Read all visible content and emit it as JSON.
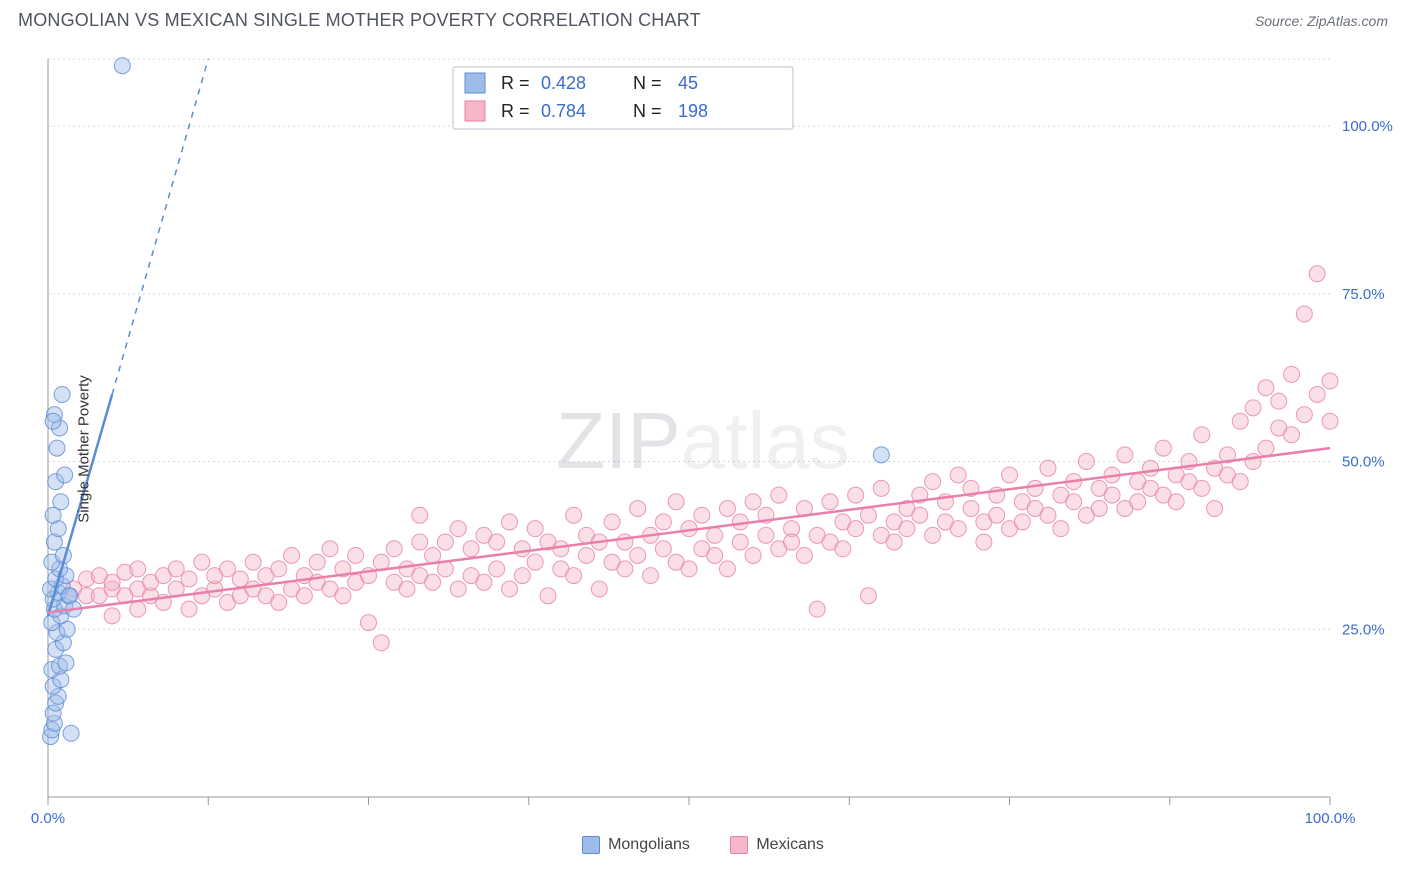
{
  "header": {
    "title": "MONGOLIAN VS MEXICAN SINGLE MOTHER POVERTY CORRELATION CHART",
    "source_label": "Source: ZipAtlas.com"
  },
  "watermark": {
    "zip": "ZIP",
    "atlas": "atlas"
  },
  "chart": {
    "type": "scatter",
    "y_axis_title": "Single Mother Poverty",
    "xlim": [
      0,
      100
    ],
    "ylim": [
      0,
      110
    ],
    "x_ticks": [
      0,
      12.5,
      25,
      37.5,
      50,
      62.5,
      75,
      87.5,
      100
    ],
    "x_tick_labels_visible": {
      "0": "0.0%",
      "100": "100.0%"
    },
    "y_grid": [
      25,
      50,
      75,
      100,
      110
    ],
    "y_grid_labels": {
      "25": "25.0%",
      "50": "50.0%",
      "75": "75.0%",
      "100": "100.0%"
    },
    "background_color": "#ffffff",
    "grid_color": "#d5d9de",
    "axis_color": "#999999",
    "label_color": "#3a6bcf",
    "marker_radius": 8,
    "marker_opacity": 0.45,
    "series": [
      {
        "name": "Mongolians",
        "color_fill": "#9fbce8",
        "color_stroke": "#5a8bd6",
        "stats": {
          "R": "0.428",
          "N": "45"
        },
        "trend": {
          "x1": 0,
          "y1": 27,
          "x2_solid": 5,
          "y2_solid": 60,
          "x2_dash": 12.5,
          "y2_dash": 110
        },
        "points": [
          [
            0.2,
            9
          ],
          [
            0.3,
            10
          ],
          [
            0.5,
            11
          ],
          [
            0.4,
            12.5
          ],
          [
            0.6,
            14
          ],
          [
            0.8,
            15
          ],
          [
            0.4,
            16.5
          ],
          [
            1.0,
            17.5
          ],
          [
            0.3,
            19
          ],
          [
            0.9,
            19.5
          ],
          [
            1.4,
            20
          ],
          [
            1.8,
            9.5
          ],
          [
            0.6,
            22
          ],
          [
            1.2,
            23
          ],
          [
            0.7,
            24.5
          ],
          [
            1.5,
            25
          ],
          [
            0.3,
            26
          ],
          [
            1.0,
            27
          ],
          [
            0.5,
            28
          ],
          [
            1.3,
            28.5
          ],
          [
            0.4,
            29.5
          ],
          [
            1.6,
            30
          ],
          [
            0.8,
            30.5
          ],
          [
            0.2,
            31
          ],
          [
            1.1,
            31.5
          ],
          [
            0.6,
            32.5
          ],
          [
            1.4,
            33
          ],
          [
            0.9,
            34
          ],
          [
            0.3,
            35
          ],
          [
            1.2,
            36
          ],
          [
            0.5,
            38
          ],
          [
            0.8,
            40
          ],
          [
            0.4,
            42
          ],
          [
            1.0,
            44
          ],
          [
            0.6,
            47
          ],
          [
            1.3,
            48
          ],
          [
            0.7,
            52
          ],
          [
            0.9,
            55
          ],
          [
            0.5,
            57
          ],
          [
            1.1,
            60
          ],
          [
            0.4,
            56
          ],
          [
            5.8,
            109
          ],
          [
            65,
            51
          ],
          [
            1.7,
            30
          ],
          [
            2.0,
            28
          ]
        ]
      },
      {
        "name": "Mexicans",
        "color_fill": "#f4b8c8",
        "color_stroke": "#e97faa",
        "stats": {
          "R": "0.784",
          "N": "198"
        },
        "trend": {
          "x1": 0,
          "y1": 27.5,
          "x2_solid": 100,
          "y2_solid": 52,
          "x2_dash": 100,
          "y2_dash": 52
        },
        "points": [
          [
            2,
            31
          ],
          [
            3,
            30
          ],
          [
            3,
            32.5
          ],
          [
            4,
            30
          ],
          [
            4,
            33
          ],
          [
            5,
            27
          ],
          [
            5,
            31
          ],
          [
            5,
            32
          ],
          [
            6,
            30
          ],
          [
            6,
            33.5
          ],
          [
            7,
            28
          ],
          [
            7,
            31
          ],
          [
            7,
            34
          ],
          [
            8,
            30
          ],
          [
            8,
            32
          ],
          [
            9,
            29
          ],
          [
            9,
            33
          ],
          [
            10,
            31
          ],
          [
            10,
            34
          ],
          [
            11,
            28
          ],
          [
            11,
            32.5
          ],
          [
            12,
            30
          ],
          [
            12,
            35
          ],
          [
            13,
            31
          ],
          [
            13,
            33
          ],
          [
            14,
            29
          ],
          [
            14,
            34
          ],
          [
            15,
            30
          ],
          [
            15,
            32.5
          ],
          [
            16,
            31
          ],
          [
            16,
            35
          ],
          [
            17,
            30
          ],
          [
            17,
            33
          ],
          [
            18,
            29
          ],
          [
            18,
            34
          ],
          [
            19,
            31
          ],
          [
            19,
            36
          ],
          [
            20,
            30
          ],
          [
            20,
            33
          ],
          [
            21,
            32
          ],
          [
            21,
            35
          ],
          [
            22,
            31
          ],
          [
            22,
            37
          ],
          [
            23,
            30
          ],
          [
            23,
            34
          ],
          [
            24,
            32
          ],
          [
            24,
            36
          ],
          [
            25,
            26
          ],
          [
            25,
            33
          ],
          [
            26,
            23
          ],
          [
            26,
            35
          ],
          [
            27,
            32
          ],
          [
            27,
            37
          ],
          [
            28,
            31
          ],
          [
            28,
            34
          ],
          [
            29,
            33
          ],
          [
            29,
            38
          ],
          [
            29,
            42
          ],
          [
            30,
            32
          ],
          [
            30,
            36
          ],
          [
            31,
            34
          ],
          [
            31,
            38
          ],
          [
            32,
            31
          ],
          [
            32,
            40
          ],
          [
            33,
            33
          ],
          [
            33,
            37
          ],
          [
            34,
            32
          ],
          [
            34,
            39
          ],
          [
            35,
            34
          ],
          [
            35,
            38
          ],
          [
            36,
            31
          ],
          [
            36,
            41
          ],
          [
            37,
            33
          ],
          [
            37,
            37
          ],
          [
            38,
            35
          ],
          [
            38,
            40
          ],
          [
            39,
            30
          ],
          [
            39,
            38
          ],
          [
            40,
            34
          ],
          [
            40,
            37
          ],
          [
            41,
            33
          ],
          [
            41,
            42
          ],
          [
            42,
            36
          ],
          [
            42,
            39
          ],
          [
            43,
            31
          ],
          [
            43,
            38
          ],
          [
            44,
            35
          ],
          [
            44,
            41
          ],
          [
            45,
            34
          ],
          [
            45,
            38
          ],
          [
            46,
            36
          ],
          [
            46,
            43
          ],
          [
            47,
            33
          ],
          [
            47,
            39
          ],
          [
            48,
            37
          ],
          [
            48,
            41
          ],
          [
            49,
            35
          ],
          [
            49,
            44
          ],
          [
            50,
            34
          ],
          [
            50,
            40
          ],
          [
            51,
            37
          ],
          [
            51,
            42
          ],
          [
            52,
            36
          ],
          [
            52,
            39
          ],
          [
            53,
            34
          ],
          [
            53,
            43
          ],
          [
            54,
            38
          ],
          [
            54,
            41
          ],
          [
            55,
            36
          ],
          [
            55,
            44
          ],
          [
            56,
            39
          ],
          [
            56,
            42
          ],
          [
            57,
            37
          ],
          [
            57,
            45
          ],
          [
            58,
            40
          ],
          [
            58,
            38
          ],
          [
            59,
            36
          ],
          [
            59,
            43
          ],
          [
            60,
            39
          ],
          [
            60,
            28
          ],
          [
            61,
            38
          ],
          [
            61,
            44
          ],
          [
            62,
            41
          ],
          [
            62,
            37
          ],
          [
            63,
            40
          ],
          [
            63,
            45
          ],
          [
            64,
            30
          ],
          [
            64,
            42
          ],
          [
            65,
            39
          ],
          [
            65,
            46
          ],
          [
            66,
            41
          ],
          [
            66,
            38
          ],
          [
            67,
            43
          ],
          [
            67,
            40
          ],
          [
            68,
            45
          ],
          [
            68,
            42
          ],
          [
            69,
            39
          ],
          [
            69,
            47
          ],
          [
            70,
            41
          ],
          [
            70,
            44
          ],
          [
            71,
            40
          ],
          [
            71,
            48
          ],
          [
            72,
            43
          ],
          [
            72,
            46
          ],
          [
            73,
            41
          ],
          [
            73,
            38
          ],
          [
            74,
            45
          ],
          [
            74,
            42
          ],
          [
            75,
            40
          ],
          [
            75,
            48
          ],
          [
            76,
            44
          ],
          [
            76,
            41
          ],
          [
            77,
            46
          ],
          [
            77,
            43
          ],
          [
            78,
            42
          ],
          [
            78,
            49
          ],
          [
            79,
            45
          ],
          [
            79,
            40
          ],
          [
            80,
            47
          ],
          [
            80,
            44
          ],
          [
            81,
            42
          ],
          [
            81,
            50
          ],
          [
            82,
            46
          ],
          [
            82,
            43
          ],
          [
            83,
            48
          ],
          [
            83,
            45
          ],
          [
            84,
            43
          ],
          [
            84,
            51
          ],
          [
            85,
            47
          ],
          [
            85,
            44
          ],
          [
            86,
            49
          ],
          [
            86,
            46
          ],
          [
            87,
            45
          ],
          [
            87,
            52
          ],
          [
            88,
            48
          ],
          [
            88,
            44
          ],
          [
            89,
            50
          ],
          [
            89,
            47
          ],
          [
            90,
            46
          ],
          [
            90,
            54
          ],
          [
            91,
            49
          ],
          [
            91,
            43
          ],
          [
            92,
            51
          ],
          [
            92,
            48
          ],
          [
            93,
            47
          ],
          [
            93,
            56
          ],
          [
            94,
            50
          ],
          [
            94,
            58
          ],
          [
            95,
            52
          ],
          [
            95,
            61
          ],
          [
            96,
            55
          ],
          [
            96,
            59
          ],
          [
            97,
            54
          ],
          [
            97,
            63
          ],
          [
            98,
            57
          ],
          [
            98,
            72
          ],
          [
            99,
            60
          ],
          [
            99,
            78
          ],
          [
            100,
            62
          ],
          [
            100,
            56
          ]
        ]
      }
    ]
  },
  "bottom_legend": {
    "items": [
      {
        "label": "Mongolians",
        "fill": "#9fbce8",
        "stroke": "#5a8bd6"
      },
      {
        "label": "Mexicans",
        "fill": "#f4b8c8",
        "stroke": "#e97faa"
      }
    ]
  },
  "stat_box": {
    "columns": [
      "R =",
      "N ="
    ]
  }
}
